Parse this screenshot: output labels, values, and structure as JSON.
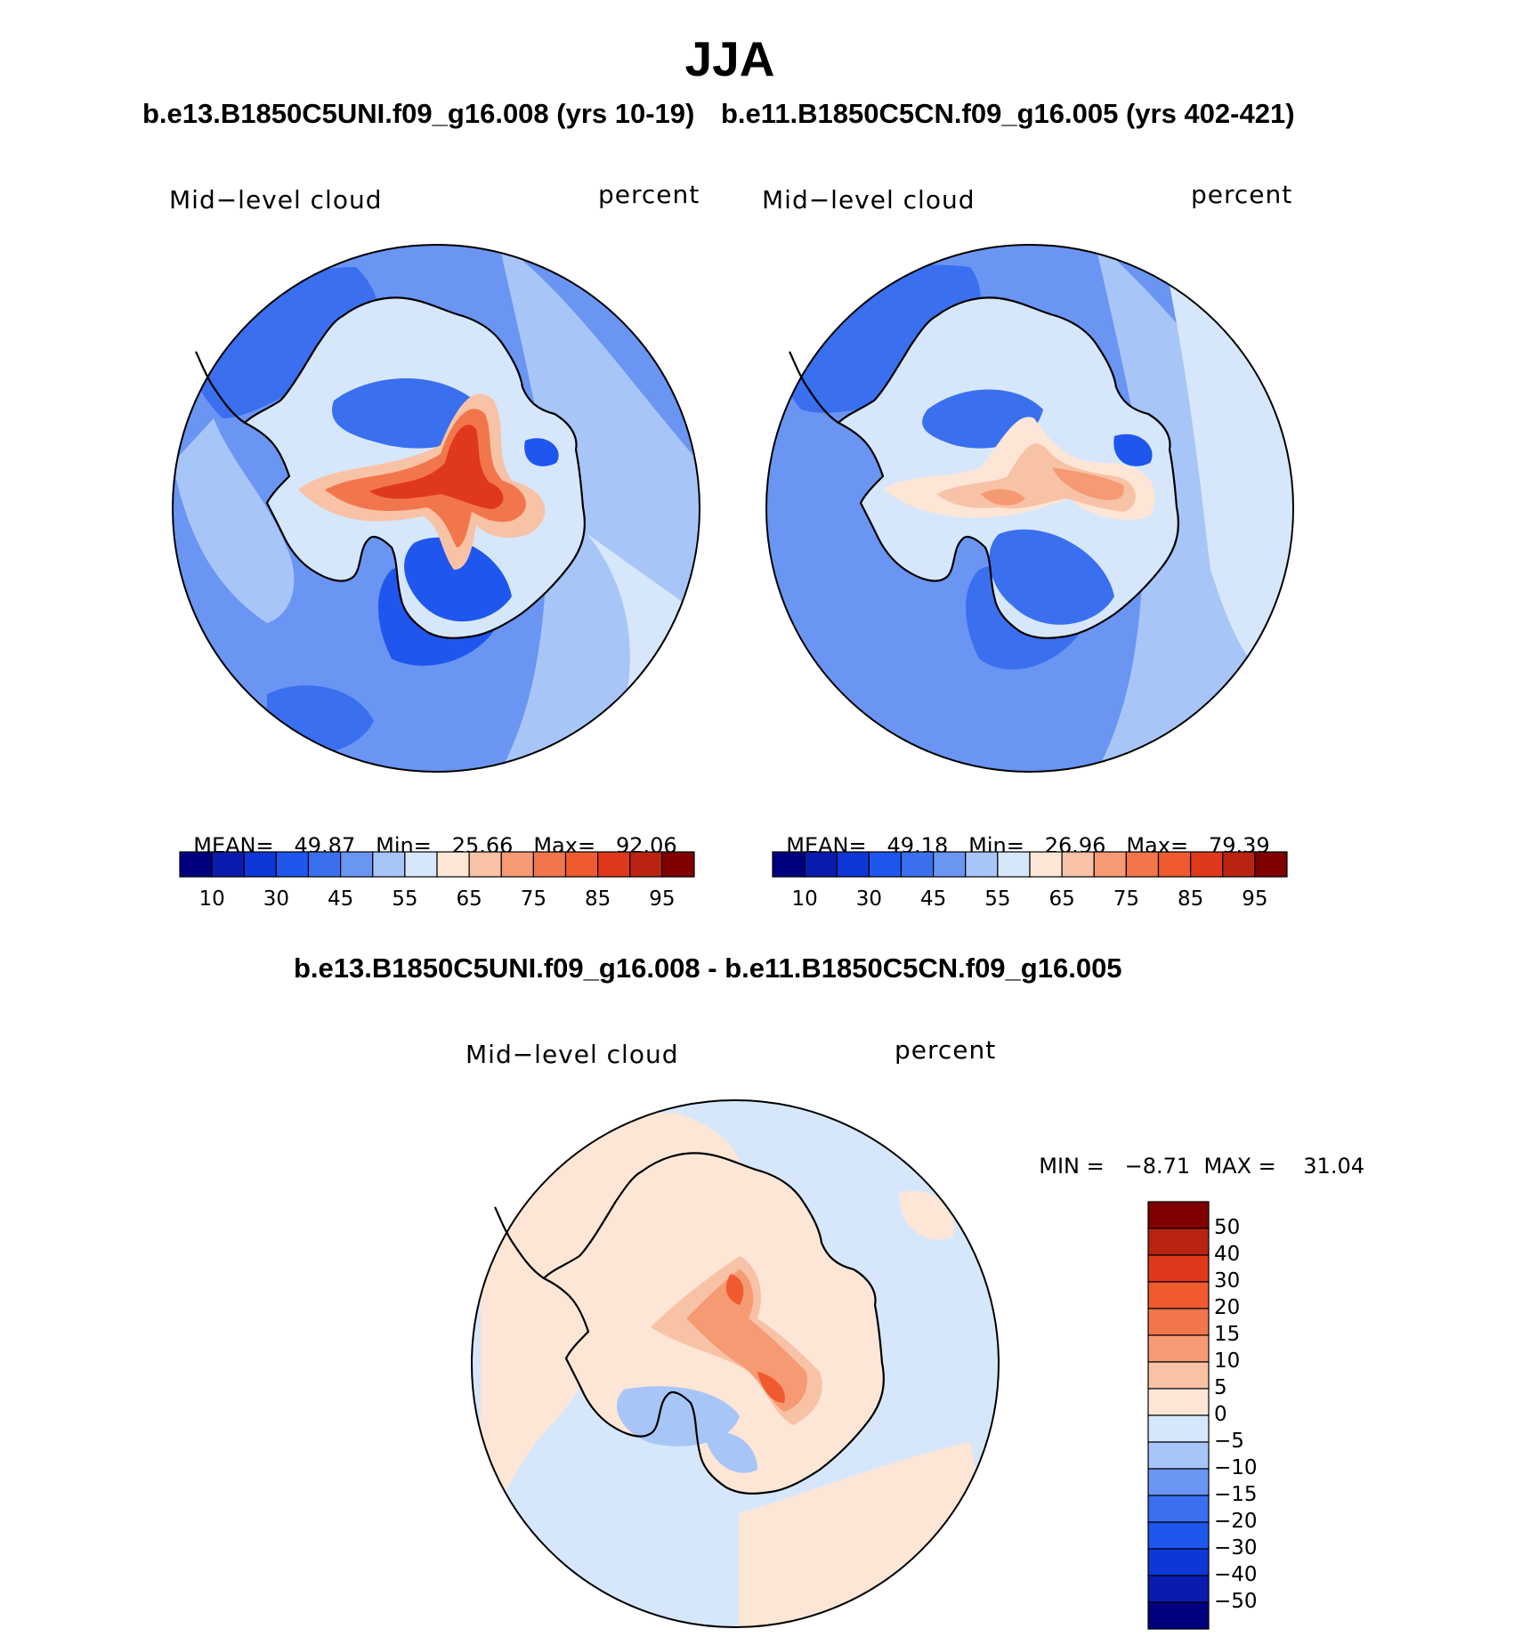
{
  "figure": {
    "title": "JJA",
    "case1_title": "b.e13.B1850C5UNI.f09_g16.008 (yrs 10-19)",
    "case2_title": "b.e11.B1850C5CN.f09_g16.005 (yrs 402-421)",
    "diff_title": "b.e13.B1850C5UNI.f09_g16.008 - b.e11.B1850C5CN.f09_g16.005"
  },
  "panels": [
    {
      "id": "case1",
      "variable": "Mid−level cloud",
      "units": "percent",
      "stats": {
        "mean_label": "MEAN=",
        "mean": "49.87",
        "min_label": "Min=",
        "min": "25.66",
        "max_label": "Max=",
        "max": "92.06"
      }
    },
    {
      "id": "case2",
      "variable": "Mid−level cloud",
      "units": "percent",
      "stats": {
        "mean_label": "MEAN=",
        "mean": "49.18",
        "min_label": "Min=",
        "min": "26.96",
        "max_label": "Max=",
        "max": "79.39"
      }
    },
    {
      "id": "diff",
      "variable": "Mid−level cloud",
      "units": "percent",
      "stats": {
        "min_label": "MIN =",
        "min": "−8.71",
        "max_label": "MAX =",
        "max": "31.04"
      }
    }
  ],
  "colorbar_abs": {
    "colors": [
      "#00007f",
      "#0a1cae",
      "#0f36d6",
      "#1e56ee",
      "#3a6fef",
      "#6b95f3",
      "#a8c5f8",
      "#d6e7fb",
      "#fde6d6",
      "#f8c2a6",
      "#f59a72",
      "#f2764c",
      "#f05a2f",
      "#e0381b",
      "#b82410",
      "#800000"
    ],
    "tick_labels": [
      "10",
      "30",
      "45",
      "55",
      "65",
      "75",
      "85",
      "95"
    ]
  },
  "colorbar_diff": {
    "colors": [
      "#00007f",
      "#0a1cae",
      "#0f36d6",
      "#1e56ee",
      "#3a6fef",
      "#6b95f3",
      "#a8c5f8",
      "#d6e7fb",
      "#fde6d6",
      "#f8c2a6",
      "#f59a72",
      "#f2764c",
      "#f05a2f",
      "#e0381b",
      "#b82410",
      "#800000"
    ],
    "tick_labels": [
      "50",
      "40",
      "30",
      "20",
      "15",
      "10",
      "5",
      "0",
      "−5",
      "−10",
      "−15",
      "−20",
      "−30",
      "−40",
      "−50"
    ]
  }
}
